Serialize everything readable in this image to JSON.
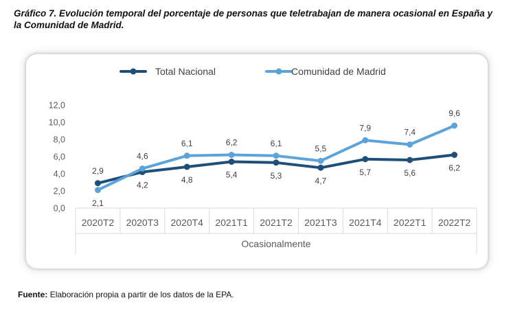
{
  "title": "Gráfico 7. Evolución temporal del porcentaje de personas que teletrabajan de manera ocasional en España y la Comunidad de Madrid.",
  "source": {
    "label": "Fuente:",
    "text": "Elaboración propia a partir de los datos de la EPA."
  },
  "chart_data": {
    "type": "line",
    "categories": [
      "2020T2",
      "2020T3",
      "2020T4",
      "2021T1",
      "2021T2",
      "2021T3",
      "2021T4",
      "2022T1",
      "2022T2"
    ],
    "xlabel": "Ocasionalmente",
    "ylabel": "",
    "ylim": [
      0,
      12
    ],
    "yticks": [
      "0,0",
      "2,0",
      "4,0",
      "6,0",
      "8,0",
      "10,0",
      "12,0"
    ],
    "grid": false,
    "legend_position": "top",
    "series": [
      {
        "name": "Total Nacional",
        "color": "#1f4e79",
        "values": [
          2.9,
          4.2,
          4.8,
          5.4,
          5.3,
          4.7,
          5.7,
          5.6,
          6.2
        ],
        "labels": [
          "2,9",
          "4,2",
          "4,8",
          "5,4",
          "5,3",
          "4,7",
          "5,7",
          "5,6",
          "6,2"
        ]
      },
      {
        "name": "Comunidad de Madrid",
        "color": "#5ba3d9",
        "values": [
          2.1,
          4.6,
          6.1,
          6.2,
          6.1,
          5.5,
          7.9,
          7.4,
          9.6
        ],
        "labels": [
          "2,1",
          "4,6",
          "6,1",
          "6,2",
          "6,1",
          "5,5",
          "7,9",
          "7,4",
          "9,6"
        ]
      }
    ]
  }
}
